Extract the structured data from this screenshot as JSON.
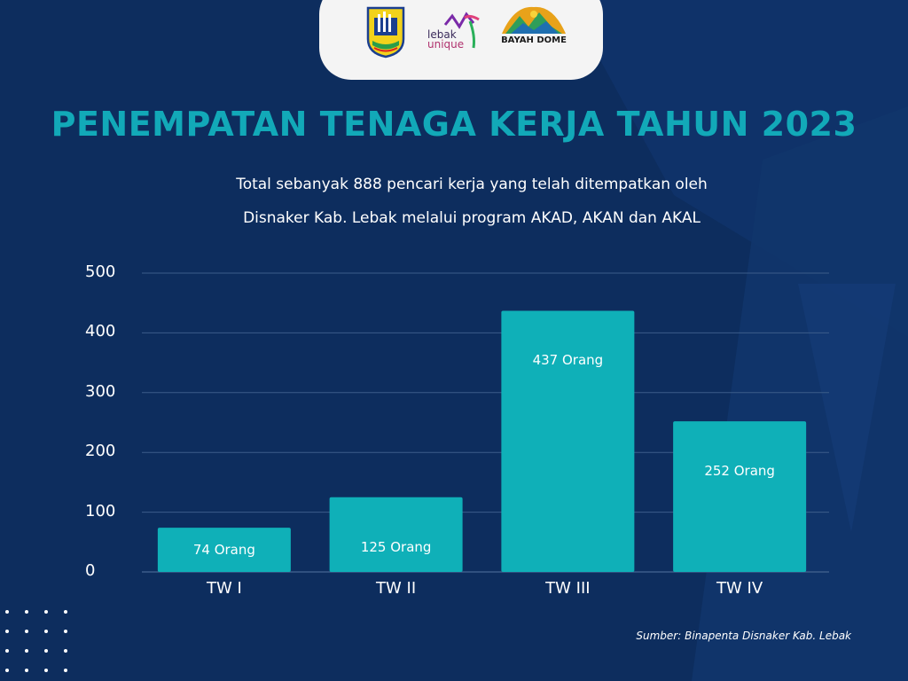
{
  "header": {
    "logos": [
      {
        "name": "kabupaten-lebak-emblem",
        "text": ""
      },
      {
        "name": "lebak-unique-logo",
        "text": "lebak unique"
      },
      {
        "name": "bayah-dome-logo",
        "text": "BAYAH DOME"
      }
    ]
  },
  "colors": {
    "background": "#0d2d5e",
    "title": "#12a9b8",
    "bar": "#0fb0b8",
    "text": "#ffffff",
    "gridline": "#3c5d8a"
  },
  "chart_data": {
    "type": "bar",
    "title": "PENEMPATAN TENAGA KERJA TAHUN 2023",
    "subtitle_lines": [
      "Total sebanyak 888 pencari kerja yang telah ditempatkan oleh",
      "Disnaker Kab. Lebak melalui program AKAD, AKAN dan AKAL"
    ],
    "categories": [
      "TW I",
      "TW II",
      "TW III",
      "TW IV"
    ],
    "values": [
      74,
      125,
      437,
      252
    ],
    "data_labels": [
      "74 Orang",
      "125 Orang",
      "437 Orang",
      "252 Orang"
    ],
    "yticks": [
      "0",
      "100",
      "200",
      "300",
      "400",
      "500"
    ],
    "ylim": [
      0,
      500
    ],
    "grid": true,
    "legend": "none",
    "source": "Sumber: Binapenta Disnaker Kab. Lebak"
  }
}
